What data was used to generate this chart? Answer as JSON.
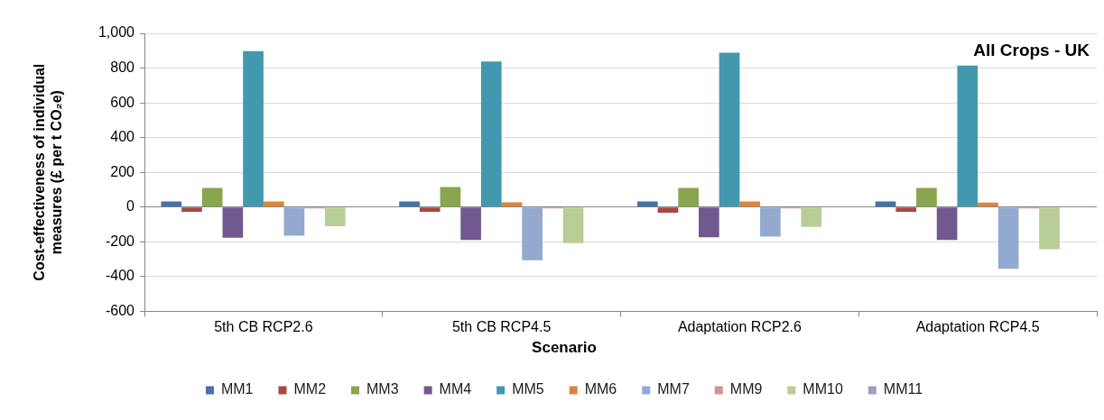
{
  "chart_data": {
    "type": "bar",
    "title": "All Crops - UK",
    "xlabel": "Scenario",
    "ylabel": "Cost-effectiveness of individual\nmeasures (£ per t CO₂e)",
    "categories": [
      "5th CB RCP2.6",
      "5th CB RCP4.5",
      "Adaptation RCP2.6",
      "Adaptation RCP4.5"
    ],
    "series": [
      {
        "name": "MM1",
        "color": "#4572a7",
        "values": [
          32,
          32,
          32,
          32
        ]
      },
      {
        "name": "MM2",
        "color": "#aa4643",
        "values": [
          -27,
          -27,
          -32,
          -27
        ]
      },
      {
        "name": "MM3",
        "color": "#89a54e",
        "values": [
          110,
          115,
          110,
          110
        ]
      },
      {
        "name": "MM4",
        "color": "#71588f",
        "values": [
          -176,
          -189,
          -174,
          -189
        ]
      },
      {
        "name": "MM5",
        "color": "#4198af",
        "values": [
          898,
          838,
          888,
          814
        ]
      },
      {
        "name": "MM6",
        "color": "#db843d",
        "values": [
          32,
          27,
          32,
          26
        ]
      },
      {
        "name": "MM7",
        "color": "#93a9cf",
        "values": [
          -165,
          -306,
          -170,
          -355
        ]
      },
      {
        "name": "MM9",
        "color": "#d19392",
        "values": [
          -8,
          -8,
          -8,
          -8
        ]
      },
      {
        "name": "MM10",
        "color": "#b9cd96",
        "values": [
          -110,
          -208,
          -114,
          -243
        ]
      },
      {
        "name": "MM11",
        "color": "#a99bbd",
        "values": [
          0,
          0,
          0,
          0
        ]
      }
    ],
    "ylim": [
      -600,
      1000
    ],
    "yticks": [
      -600,
      -400,
      -200,
      0,
      200,
      400,
      600,
      800,
      {
        "value": 1000,
        "label": "1,000"
      }
    ],
    "grid": "y",
    "legend": "bottom"
  }
}
